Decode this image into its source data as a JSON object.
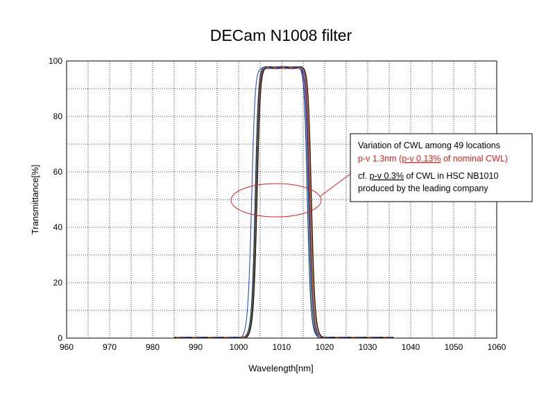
{
  "chart_data": {
    "type": "line",
    "title": "DECam N1008 filter",
    "xlabel": "Wavelength[nm]",
    "ylabel": "Transmittance[%]",
    "xlim": [
      960,
      1060
    ],
    "ylim": [
      0,
      100
    ],
    "xticks": [
      960,
      970,
      980,
      990,
      1000,
      1010,
      1020,
      1030,
      1040,
      1050,
      1060
    ],
    "yticks": [
      0,
      20,
      40,
      60,
      80,
      100
    ],
    "grid": "dotted, major and minor",
    "series": [
      {
        "color": "#1f2a80",
        "center": 1009.9,
        "fwhm": 12.2
      },
      {
        "color": "#0b6b2e",
        "center": 1010.1,
        "fwhm": 12.3
      },
      {
        "color": "#7a1fa0",
        "center": 1010.3,
        "fwhm": 12.4
      },
      {
        "color": "#c0392b",
        "center": 1010.4,
        "fwhm": 12.5
      },
      {
        "color": "#e08a00",
        "center": 1010.5,
        "fwhm": 12.6
      },
      {
        "color": "#000000",
        "center": 1010.6,
        "fwhm": 12.7
      },
      {
        "color": "#2e4bd0",
        "center": 1009.7,
        "fwhm": 13.4
      }
    ],
    "annotation": {
      "line1": "Variation of CWL among 49 locations",
      "line2_pre": "p-v 1.3nm (",
      "line2_underlined": "p-v 0.13%",
      "line2_post": " of nominal CWL)",
      "line3_pre": "cf. ",
      "line3_underlined": "p-v 0.3%",
      "line3_post": " of CWL in HSC NB1010",
      "line4": "produced by the leading company",
      "red_color": "#e0201b"
    }
  }
}
